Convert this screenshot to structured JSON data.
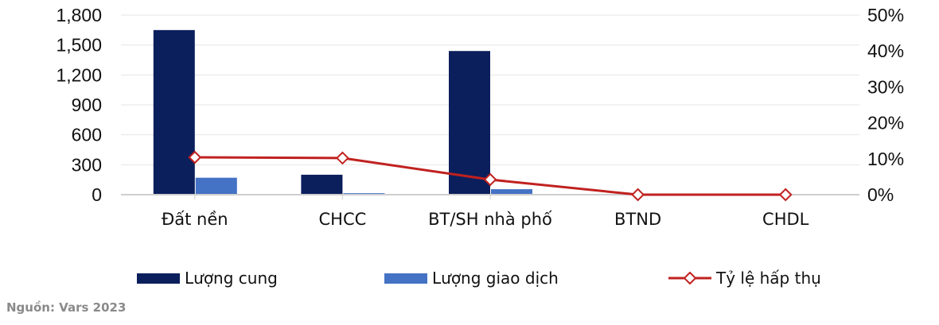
{
  "chart_data": {
    "type": "bar+line",
    "categories": [
      "Đất nền",
      "CHCC",
      "BT/SH nhà phố",
      "BTND",
      "CHDL"
    ],
    "series": [
      {
        "name": "Lượng cung",
        "type": "bar",
        "axis": "left",
        "color": "#0B1F5C",
        "values": [
          1650,
          200,
          1440,
          0,
          0
        ]
      },
      {
        "name": "Lượng giao dịch",
        "type": "bar",
        "axis": "left",
        "color": "#4472C4",
        "values": [
          170,
          15,
          55,
          0,
          0
        ]
      },
      {
        "name": "Tỷ lệ hấp thụ",
        "type": "line",
        "axis": "right",
        "color": "#C0211F",
        "marker": "diamond-open",
        "values": [
          10.4,
          10.2,
          4.2,
          0,
          0
        ],
        "unit": "%"
      }
    ],
    "left_axis": {
      "min": 0,
      "max": 1800,
      "ticks": [
        "0",
        "300",
        "600",
        "900",
        "1,200",
        "1,500",
        "1,800"
      ]
    },
    "right_axis": {
      "min": 0,
      "max": 50,
      "ticks": [
        "0%",
        "10%",
        "20%",
        "30%",
        "40%",
        "50%"
      ]
    },
    "grid": true,
    "legend_position": "bottom",
    "title": "",
    "xlabel": "",
    "ylabel": ""
  },
  "legend": {
    "supply": "Lượng cung",
    "transactions": "Lượng giao dịch",
    "absorption": "Tỷ lệ hấp thụ"
  },
  "source": "Nguồn: Vars 2023"
}
